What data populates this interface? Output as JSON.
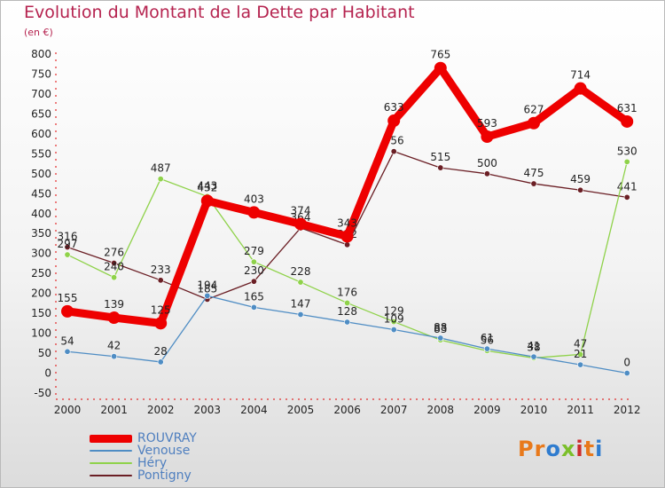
{
  "header": {
    "title": "Evolution du Montant de la Dette par Habitant",
    "subtitle": "(en €)"
  },
  "logo": {
    "text": "Proxiti"
  },
  "chart_data": {
    "type": "line",
    "title": "Evolution du Montant de la Dette par Habitant",
    "subtitle": "(en €)",
    "xlabel": "",
    "ylabel": "",
    "x": [
      "2000",
      "2001",
      "2002",
      "2003",
      "2004",
      "2005",
      "2006",
      "2007",
      "2008",
      "2009",
      "2010",
      "2011",
      "2012"
    ],
    "ylim": [
      -50,
      800
    ],
    "yticks": [
      -50,
      0,
      50,
      100,
      150,
      200,
      250,
      300,
      350,
      400,
      450,
      500,
      550,
      600,
      650,
      700,
      750,
      800
    ],
    "grid": false,
    "legend_position": "bottom-left",
    "series": [
      {
        "name": "Pontigny",
        "color": "#6b1f25",
        "values": [
          316,
          276,
          233,
          185,
          230,
          364,
          322,
          556,
          515,
          500,
          475,
          459,
          441
        ]
      },
      {
        "name": "Héry",
        "color": "#8fd24a",
        "values": [
          297,
          240,
          487,
          443,
          279,
          228,
          176,
          129,
          83,
          56,
          38,
          47,
          530
        ]
      },
      {
        "name": "Venouse",
        "color": "#4f8dc4",
        "values": [
          54,
          42,
          28,
          194,
          165,
          147,
          128,
          109,
          88,
          61,
          41,
          21,
          0
        ]
      },
      {
        "name": "ROUVRAY",
        "color": "#ee0000",
        "values": [
          155,
          139,
          125,
          432,
          403,
          374,
          343,
          633,
          765,
          593,
          627,
          714,
          631
        ]
      }
    ]
  }
}
